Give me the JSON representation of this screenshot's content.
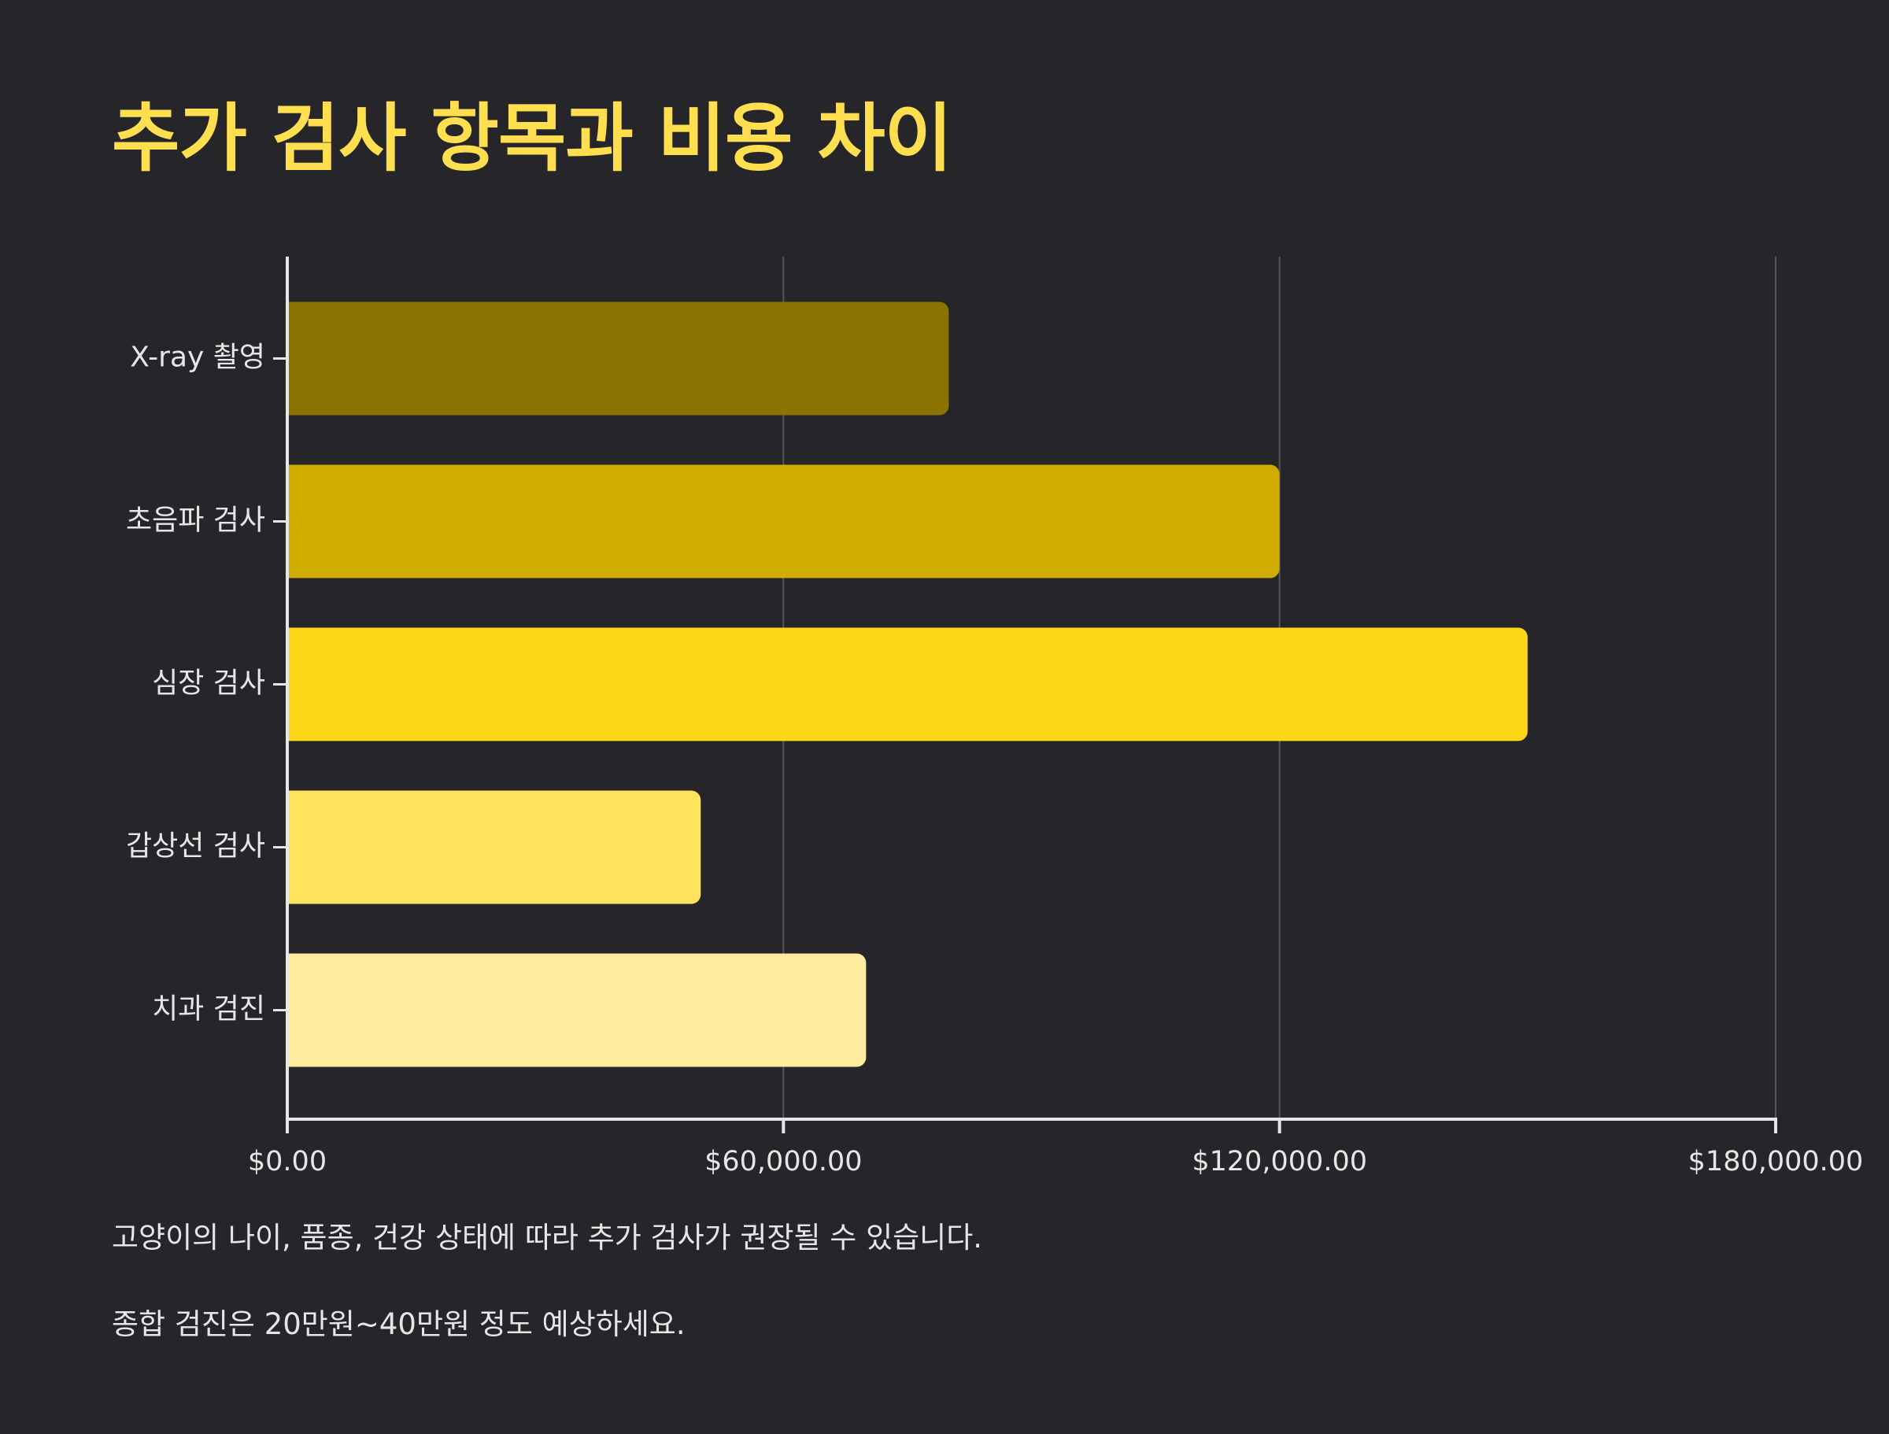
{
  "title": "추가 검사 항목과 비용 차이",
  "notes": [
    "고양이의 나이, 품종, 건강 상태에 따라 추가 검사가 권장될 수 있습니다.",
    "종합 검진은 20만원~40만원 정도 예상하세요."
  ],
  "chart_data": {
    "type": "bar",
    "orientation": "horizontal",
    "categories": [
      "X-ray 촬영",
      "초음파 검사",
      "심장 검사",
      "갑상선 검사",
      "치과 검진"
    ],
    "values": [
      80000,
      120000,
      150000,
      50000,
      70000
    ],
    "xlim": [
      0,
      180000
    ],
    "xticks": [
      0,
      60000,
      120000,
      180000
    ],
    "xtick_labels": [
      "$0.00",
      "$60,000.00",
      "$120,000.00",
      "$180,000.00"
    ],
    "grid": true,
    "colors": [
      "#8a7300",
      "#d0ab00",
      "#ffd719",
      "#ffe35c",
      "#ffed9f"
    ]
  }
}
